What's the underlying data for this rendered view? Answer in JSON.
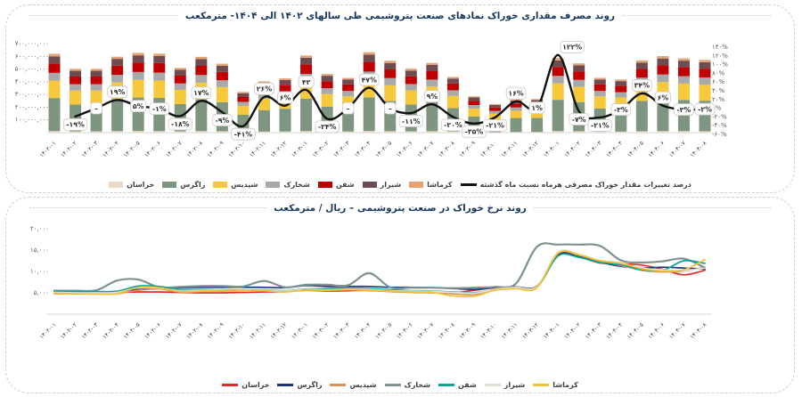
{
  "page": {
    "background": "#ffffff"
  },
  "chart_data": [
    {
      "type": "bar",
      "subtype": "stacked-bars-with-percent-line",
      "title": "روند مصرف مقداری خوراک نمادهای صنعت پتروشیمی طی سالهای ۱۴۰۲ الی ۱۴۰۴- مترمکعب",
      "months": [
        "۱۴۰۲-۰۱",
        "۱۴۰۲-۰۲",
        "۱۴۰۲-۰۳",
        "۱۴۰۲-۰۴",
        "۱۴۰۲-۰۵",
        "۱۴۰۲-۰۶",
        "۱۴۰۲-۰۷",
        "۱۴۰۲-۰۸",
        "۱۴۰۲-۰۹",
        "۱۴۰۲-۱۰",
        "۱۴۰۲-۱۱",
        "۱۴۰۲-۱۲",
        "۱۴۰۳-۰۱",
        "۱۴۰۳-۰۲",
        "۱۴۰۳-۰۳",
        "۱۴۰۳-۰۴",
        "۱۴۰۳-۰۵",
        "۱۴۰۳-۰۶",
        "۱۴۰۳-۰۷",
        "۱۴۰۳-۰۸",
        "۱۴۰۳-۰۹",
        "۱۴۰۳-۱۰",
        "۱۴۰۳-۱۱",
        "۱۴۰۳-۱۲",
        "۱۴۰۴-۰۱",
        "۱۴۰۴-۰۲",
        "۱۴۰۴-۰۳",
        "۱۴۰۴-۰۴",
        "۱۴۰۴-۰۵",
        "۱۴۰۴-۰۶",
        "۱۴۰۴-۰۷",
        "۱۴۰۴-۰۸"
      ],
      "y_left_ticks": [
        "۷۰۰,۰۰۰,۰۰۰",
        "۶۰۰,۰۰۰,۰۰۰",
        "۵۰۰,۰۰۰,۰۰۰",
        "۴۰۰,۰۰۰,۰۰۰",
        "۳۰۰,۰۰۰,۰۰۰",
        "۲۰۰,۰۰۰,۰۰۰",
        "۱۰۰,۰۰۰,۰۰۰",
        "-"
      ],
      "y_left_max_millions": 700,
      "values_unit": "مترمکعب (میلیون)",
      "y_right_ticks": [
        "۱۴۰%",
        "۱۲۰%",
        "۱۰۰%",
        "۸۰%",
        "۶۰%",
        "۴۰%",
        "۲۰%",
        "۰%",
        "-۲۰%",
        "-۴۰%",
        "-۶۰%"
      ],
      "y_right_range": [
        -60,
        140
      ],
      "series": [
        {
          "key": "khorasan",
          "name_fa": "خراسان",
          "color": "#e8dcc6",
          "values": [
            12,
            10,
            10,
            12,
            13,
            12,
            10,
            12,
            11,
            6,
            8,
            9,
            12,
            9,
            9,
            13,
            11,
            10,
            11,
            9,
            6,
            4,
            5,
            5,
            12,
            11,
            9,
            8,
            11,
            12,
            12,
            11
          ]
        },
        {
          "key": "zagros",
          "name_fa": "زاگرس",
          "color": "#7e957f",
          "values": [
            260,
            211,
            211,
            251,
            263,
            261,
            214,
            250,
            228,
            134,
            169,
            179,
            255,
            194,
            181,
            265,
            237,
            211,
            230,
            184,
            120,
            95,
            110,
            111,
            246,
            229,
            181,
            176,
            239,
            253,
            245,
            240
          ]
        },
        {
          "key": "shepdis",
          "name_fa": "شپدیس",
          "color": "#f6c83b",
          "values": [
            136,
            110,
            110,
            131,
            138,
            137,
            112,
            131,
            119,
            70,
            89,
            94,
            134,
            101,
            95,
            139,
            124,
            111,
            121,
            96,
            63,
            49,
            57,
            58,
            129,
            120,
            95,
            92,
            125,
            132,
            129,
            126
          ]
        },
        {
          "key": "shkhark",
          "name_fa": "شخارک",
          "color": "#a9a9a9",
          "values": [
            62,
            50,
            50,
            60,
            63,
            62,
            51,
            60,
            54,
            32,
            40,
            43,
            61,
            46,
            43,
            63,
            57,
            50,
            55,
            44,
            28,
            23,
            26,
            26,
            59,
            55,
            43,
            42,
            57,
            60,
            58,
            57
          ]
        },
        {
          "key": "shafan",
          "name_fa": "شفن",
          "color": "#c00000",
          "values": [
            74,
            60,
            60,
            72,
            75,
            75,
            61,
            72,
            65,
            38,
            48,
            51,
            73,
            55,
            52,
            76,
            68,
            60,
            66,
            53,
            34,
            27,
            31,
            32,
            70,
            65,
            52,
            50,
            68,
            72,
            70,
            69
          ]
        },
        {
          "key": "shiraz",
          "name_fa": "شیراز",
          "color": "#6e4c50",
          "values": [
            56,
            45,
            45,
            54,
            56,
            55,
            46,
            53,
            49,
            30,
            37,
            38,
            54,
            42,
            38,
            57,
            51,
            45,
            49,
            39,
            26,
            20,
            24,
            24,
            52,
            49,
            38,
            37,
            51,
            54,
            52,
            51
          ]
        },
        {
          "key": "kermasha",
          "name_fa": "کرماشا",
          "color": "#e2a477",
          "values": [
            20,
            16,
            16,
            17,
            19,
            19,
            15,
            18,
            16,
            10,
            12,
            13,
            18,
            14,
            12,
            19,
            17,
            16,
            16,
            13,
            8,
            7,
            8,
            8,
            18,
            16,
            13,
            13,
            17,
            19,
            18,
            18
          ]
        }
      ],
      "line": {
        "name_fa": "درصد تغییرات مقدار خوراک مصرفی هرماه نسبت ماه گذشته",
        "color": "#111111",
        "pct": [
          null,
          -19,
          0,
          19,
          5,
          -1,
          -18,
          17,
          -9,
          -41,
          26,
          6,
          42,
          -24,
          0,
          47,
          0,
          -11,
          9,
          -20,
          -35,
          -21,
          16,
          1,
          122,
          -7,
          -21,
          -3,
          34,
          6,
          -3,
          -2
        ],
        "labels": [
          null,
          "-۱۹%",
          "–",
          "۱۹%",
          "۵%",
          "-۱%",
          "-۱۸%",
          "۱۷%",
          "-۹%",
          "-۴۱%",
          "۲۶%",
          "۶%",
          "۴۲",
          "-۲۴%",
          "–",
          "۴۷%",
          "–",
          "-۱۱%",
          "۹%",
          "-۲۰%",
          "-۳۵%",
          "-۲۱%",
          "۱۶%",
          "۱%",
          "۱۲۲%",
          "-۷%",
          "-۲۱%",
          "-۳%",
          "۳۴%",
          "۶%",
          "-۳%",
          "-۲%"
        ]
      }
    },
    {
      "type": "line",
      "title": "روند نرخ خوراک در صنعت پتروشیمی – ریال / مترمکعب",
      "months": [
        "۱۴۰۲-۰۱",
        "۱۴۰۲-۰۲",
        "۱۴۰۲-۰۳",
        "۱۴۰۲-۰۴",
        "۱۴۰۲-۰۵",
        "۱۴۰۲-۰۶",
        "۱۴۰۲-۰۷",
        "۱۴۰۲-۰۸",
        "۱۴۰۲-۰۹",
        "۱۴۰۲-۱۰",
        "۱۴۰۲-۱۱",
        "۱۴۰۲-۱۲",
        "۱۴۰۳-۰۱",
        "۱۴۰۳-۰۲",
        "۱۴۰۳-۰۳",
        "۱۴۰۳-۰۴",
        "۱۴۰۳-۰۵",
        "۱۴۰۳-۰۶",
        "۱۴۰۳-۰۷",
        "۱۴۰۳-۰۸",
        "۱۴۰۳-۰۹",
        "۱۴۰۳-۱۰",
        "۱۴۰۳-۱۱",
        "۱۴۰۳-۱۲",
        "۱۴۰۴-۰۱",
        "۱۴۰۴-۰۲",
        "۱۴۰۴-۰۳",
        "۱۴۰۴-۰۴",
        "۱۴۰۴-۰۵",
        "۱۴۰۴-۰۶",
        "۱۴۰۴-۰۷",
        "۱۴۰۴-۰۸"
      ],
      "y_ticks": [
        "۲۰,۰۰۰",
        "۱۵,۰۰۰",
        "۱۰,۰۰۰",
        "۵,۰۰۰",
        "-"
      ],
      "y_max": 20000,
      "values_unit": "ریال / مترمکعب",
      "series": [
        {
          "key": "khorasan",
          "name_fa": "خراسان",
          "color": "#e02b2b",
          "values": [
            5000,
            5000,
            5000,
            5100,
            5200,
            5200,
            5100,
            5000,
            5000,
            5100,
            5200,
            5300,
            5600,
            5400,
            5500,
            5600,
            5300,
            5200,
            5200,
            5000,
            5600,
            6200,
            6300,
            6500,
            13800,
            13400,
            12000,
            11800,
            11500,
            10500,
            9200,
            10300
          ]
        },
        {
          "key": "zagros",
          "name_fa": "زاگرس",
          "color": "#1f3478",
          "values": [
            5300,
            5200,
            5200,
            5300,
            5800,
            6000,
            6200,
            6300,
            6300,
            6300,
            6300,
            6200,
            6700,
            6500,
            6500,
            6500,
            6300,
            6300,
            6200,
            6000,
            5800,
            6200,
            6400,
            6600,
            14000,
            13600,
            12200,
            11200,
            10800,
            11000,
            10800,
            10600
          ]
        },
        {
          "key": "shepdis",
          "name_fa": "شپدیس",
          "color": "#d9915b",
          "values": [
            4800,
            4800,
            4800,
            4800,
            5600,
            5900,
            5200,
            5300,
            5400,
            5400,
            5500,
            5300,
            5600,
            5500,
            5700,
            5500,
            5300,
            5100,
            5000,
            4800,
            4600,
            5900,
            6200,
            6400,
            14200,
            13800,
            12400,
            11400,
            10300,
            9900,
            10100,
            11000
          ]
        },
        {
          "key": "shkhark",
          "name_fa": "شخارک",
          "color": "#7f9192",
          "values": [
            5500,
            5500,
            5600,
            7900,
            8100,
            6300,
            6400,
            6600,
            6600,
            6500,
            7800,
            6300,
            6900,
            6900,
            6800,
            9600,
            6300,
            6200,
            6200,
            6100,
            6200,
            6400,
            7200,
            15800,
            16300,
            16300,
            16000,
            12600,
            12100,
            12400,
            13000,
            10900
          ]
        },
        {
          "key": "shafan",
          "name_fa": "شفن",
          "color": "#0aa39a",
          "values": [
            5400,
            5300,
            5300,
            5400,
            6600,
            6500,
            5800,
            5800,
            5700,
            5600,
            5700,
            5500,
            5900,
            6000,
            6100,
            6000,
            5700,
            5500,
            5400,
            5200,
            5000,
            5700,
            6100,
            6300,
            13600,
            13300,
            12100,
            11600,
            10400,
            10300,
            12500,
            11900
          ]
        },
        {
          "key": "shiraz",
          "name_fa": "شیراز",
          "color": "#e3e1d7",
          "values": [
            5100,
            5000,
            5000,
            5100,
            6200,
            6100,
            5500,
            5600,
            5600,
            5500,
            5600,
            5400,
            5800,
            5700,
            5900,
            5800,
            5500,
            5400,
            5300,
            5100,
            4900,
            5800,
            6300,
            6500,
            14500,
            14000,
            12600,
            11900,
            10800,
            10400,
            10200,
            10800
          ]
        },
        {
          "key": "kermasha",
          "name_fa": "کرماشا",
          "color": "#f2c236",
          "values": [
            4900,
            4800,
            4700,
            4800,
            6300,
            6200,
            5300,
            5400,
            5500,
            5400,
            5500,
            5200,
            5700,
            5600,
            5800,
            5600,
            5400,
            5200,
            5100,
            4300,
            4200,
            5600,
            6000,
            6200,
            14300,
            13900,
            12500,
            12000,
            10600,
            10100,
            10400,
            12800
          ]
        }
      ]
    }
  ]
}
